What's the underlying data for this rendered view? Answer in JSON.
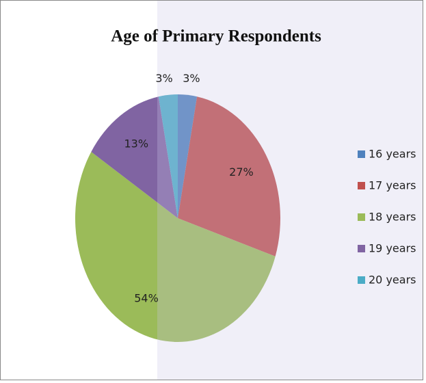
{
  "chart_data": {
    "type": "pie",
    "title": "Age of Primary Respondents",
    "categories": [
      "16 years",
      "17 years",
      "18 years",
      "19 years",
      "20 years"
    ],
    "values": [
      3,
      27,
      54,
      13,
      3
    ],
    "value_labels": [
      "3%",
      "27%",
      "54%",
      "13%",
      "3%"
    ],
    "colors": [
      "#4f81bd",
      "#c0504d",
      "#9bbb59",
      "#8064a2",
      "#4bacc6"
    ],
    "legend": "right"
  }
}
